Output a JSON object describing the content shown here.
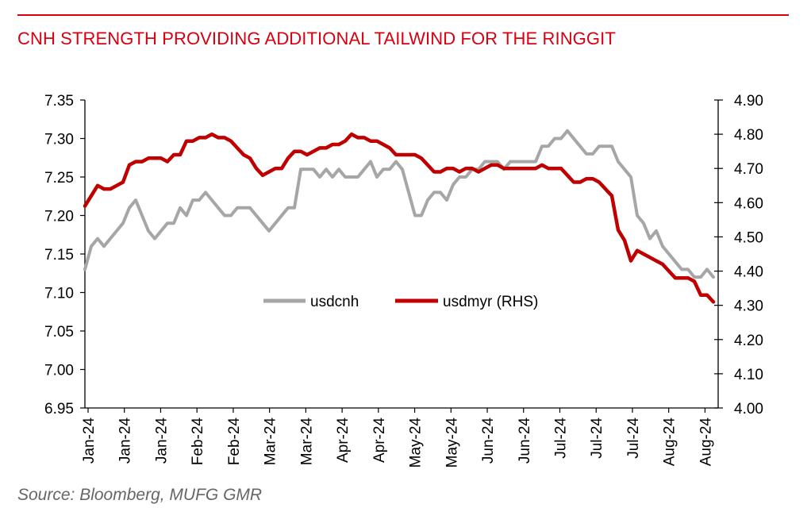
{
  "header": {
    "title": "CNH STRENGTH PROVIDING ADDITIONAL TAILWIND FOR THE RINGGIT",
    "accent_color": "#d7000f"
  },
  "footer": {
    "source": "Source: Bloomberg, MUFG GMR"
  },
  "chart_data": {
    "type": "line",
    "title": "CNH STRENGTH PROVIDING ADDITIONAL TAILWIND FOR THE RINGGIT",
    "xlabel": "",
    "ylabel": "",
    "legend_position": "center",
    "grid": false,
    "x_tick_labels": [
      "Jan-24",
      "Jan-24",
      "Jan-24",
      "Feb-24",
      "Feb-24",
      "Mar-24",
      "Mar-24",
      "Apr-24",
      "Apr-24",
      "May-24",
      "May-24",
      "Jun-24",
      "Jun-24",
      "Jul-24",
      "Jul-24",
      "Jul-24",
      "Aug-24",
      "Aug-24"
    ],
    "y_left": {
      "min": 6.95,
      "max": 7.35,
      "step": 0.05,
      "ticks": [
        "7.35",
        "7.30",
        "7.25",
        "7.20",
        "7.15",
        "7.10",
        "7.05",
        "7.00",
        "6.95"
      ]
    },
    "y_right": {
      "min": 4.0,
      "max": 4.9,
      "step": 0.1,
      "ticks": [
        "4.90",
        "4.80",
        "4.70",
        "4.60",
        "4.50",
        "4.40",
        "4.30",
        "4.20",
        "4.10",
        "4.00"
      ]
    },
    "series": [
      {
        "name": "usdcnh",
        "axis": "left",
        "color": "#a6a6a6",
        "values": [
          7.13,
          7.16,
          7.17,
          7.16,
          7.17,
          7.18,
          7.19,
          7.21,
          7.22,
          7.2,
          7.18,
          7.17,
          7.18,
          7.19,
          7.19,
          7.21,
          7.2,
          7.22,
          7.22,
          7.23,
          7.22,
          7.21,
          7.2,
          7.2,
          7.21,
          7.21,
          7.21,
          7.2,
          7.19,
          7.18,
          7.19,
          7.2,
          7.21,
          7.21,
          7.26,
          7.26,
          7.26,
          7.25,
          7.26,
          7.25,
          7.26,
          7.25,
          7.25,
          7.25,
          7.26,
          7.27,
          7.25,
          7.26,
          7.26,
          7.27,
          7.26,
          7.23,
          7.2,
          7.2,
          7.22,
          7.23,
          7.23,
          7.22,
          7.24,
          7.25,
          7.25,
          7.26,
          7.26,
          7.27,
          7.27,
          7.27,
          7.26,
          7.27,
          7.27,
          7.27,
          7.27,
          7.27,
          7.29,
          7.29,
          7.3,
          7.3,
          7.31,
          7.3,
          7.29,
          7.28,
          7.28,
          7.29,
          7.29,
          7.29,
          7.27,
          7.26,
          7.25,
          7.2,
          7.19,
          7.17,
          7.18,
          7.16,
          7.15,
          7.14,
          7.13,
          7.13,
          7.12,
          7.12,
          7.13,
          7.12
        ]
      },
      {
        "name": "usdmyr (RHS)",
        "axis": "right",
        "color": "#c00000",
        "values": [
          4.59,
          4.62,
          4.65,
          4.64,
          4.64,
          4.65,
          4.66,
          4.71,
          4.72,
          4.72,
          4.73,
          4.73,
          4.73,
          4.72,
          4.74,
          4.74,
          4.78,
          4.78,
          4.79,
          4.79,
          4.8,
          4.79,
          4.79,
          4.78,
          4.76,
          4.74,
          4.73,
          4.7,
          4.68,
          4.69,
          4.7,
          4.7,
          4.73,
          4.75,
          4.75,
          4.74,
          4.75,
          4.76,
          4.76,
          4.77,
          4.77,
          4.78,
          4.8,
          4.79,
          4.79,
          4.78,
          4.78,
          4.77,
          4.76,
          4.74,
          4.74,
          4.74,
          4.74,
          4.73,
          4.71,
          4.69,
          4.69,
          4.7,
          4.7,
          4.69,
          4.7,
          4.7,
          4.69,
          4.7,
          4.71,
          4.71,
          4.7,
          4.7,
          4.7,
          4.7,
          4.7,
          4.7,
          4.71,
          4.7,
          4.7,
          4.7,
          4.68,
          4.66,
          4.66,
          4.67,
          4.67,
          4.66,
          4.64,
          4.62,
          4.52,
          4.49,
          4.43,
          4.46,
          4.45,
          4.44,
          4.43,
          4.42,
          4.4,
          4.38,
          4.38,
          4.38,
          4.37,
          4.33,
          4.33,
          4.31
        ]
      }
    ]
  }
}
